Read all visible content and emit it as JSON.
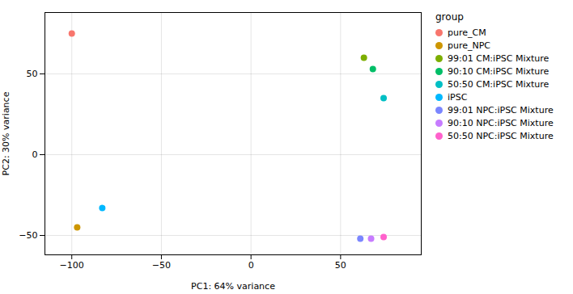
{
  "chart_data": {
    "type": "scatter",
    "xlabel": "PC1: 64% variance",
    "ylabel": "PC2: 30% variance",
    "legend_title": "group",
    "legend": "right",
    "grid": true,
    "xlim": [
      -115,
      95
    ],
    "ylim": [
      -62,
      88
    ],
    "xticks": [
      -100,
      -50,
      0,
      50
    ],
    "yticks": [
      -50,
      0,
      50
    ],
    "series": [
      {
        "name": "pure_CM",
        "color": "#F8766D",
        "x": [
          -100
        ],
        "values": [
          75
        ]
      },
      {
        "name": "pure_NPC",
        "color": "#CD9600",
        "x": [
          -97
        ],
        "values": [
          -45
        ]
      },
      {
        "name": "99:01 CM:iPSC Mixture",
        "color": "#7CAE00",
        "x": [
          63
        ],
        "values": [
          60
        ]
      },
      {
        "name": "90:10 CM:iPSC Mixture",
        "color": "#00BE67",
        "x": [
          68
        ],
        "values": [
          53
        ]
      },
      {
        "name": "50:50 CM:iPSC Mixture",
        "color": "#00BFC4",
        "x": [
          74
        ],
        "values": [
          35
        ]
      },
      {
        "name": "iPSC",
        "color": "#00B8FF",
        "x": [
          -83
        ],
        "values": [
          -33
        ]
      },
      {
        "name": "99:01 NPC:iPSC Mixture",
        "color": "#7B86FF",
        "x": [
          61
        ],
        "values": [
          -52
        ]
      },
      {
        "name": "90:10 NPC:iPSC Mixture",
        "color": "#C77CFF",
        "x": [
          67
        ],
        "values": [
          -52
        ]
      },
      {
        "name": "50:50 NPC:iPSC Mixture",
        "color": "#FF61CC",
        "x": [
          74
        ],
        "values": [
          -51
        ]
      }
    ]
  }
}
